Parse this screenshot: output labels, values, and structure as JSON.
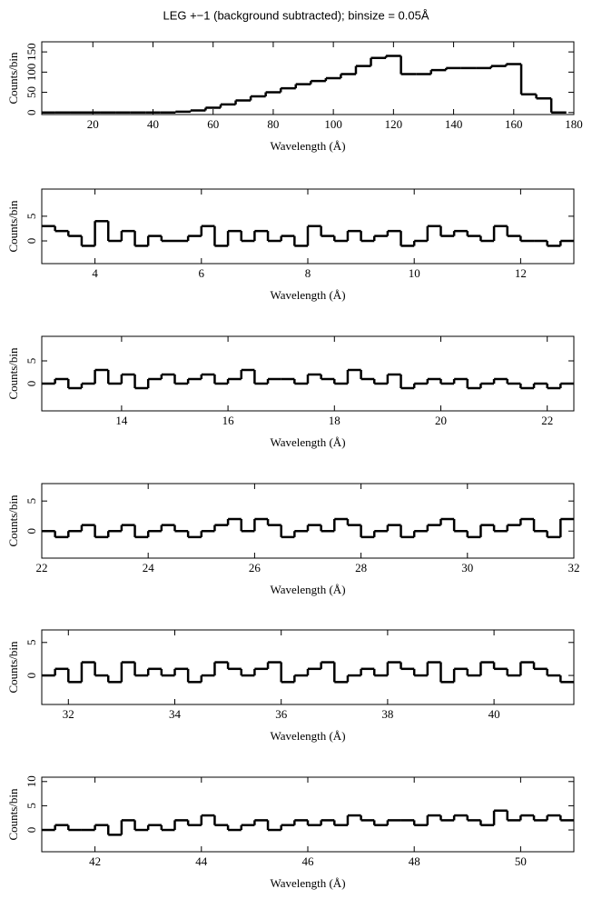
{
  "chart_data": [
    {
      "type": "step",
      "title": "LEG +−1 (background subtracted); binsize = 0.05Å",
      "xlabel": "Wavelength (Å)",
      "ylabel": "Counts/bin",
      "color": "#000000",
      "x": [
        5,
        10,
        15,
        20,
        25,
        30,
        35,
        40,
        45,
        50,
        55,
        60,
        65,
        70,
        75,
        80,
        85,
        90,
        95,
        100,
        105,
        110,
        115,
        120,
        125,
        130,
        135,
        140,
        145,
        150,
        155,
        160,
        165,
        170,
        175
      ],
      "values": [
        0,
        0,
        0,
        0,
        0,
        0,
        0,
        0,
        0,
        2,
        5,
        12,
        20,
        30,
        40,
        50,
        60,
        70,
        78,
        85,
        95,
        115,
        135,
        140,
        95,
        95,
        105,
        110,
        110,
        110,
        115,
        120,
        45,
        35,
        0
      ],
      "xlim": [
        3,
        180
      ],
      "xticks": [
        20,
        40,
        60,
        80,
        100,
        120,
        140,
        160,
        180
      ],
      "ylim": [
        -5,
        175
      ],
      "yticks": [
        0,
        50,
        100,
        150
      ]
    },
    {
      "type": "step",
      "xlabel": "Wavelength (Å)",
      "ylabel": "Counts/bin",
      "color": "#000000",
      "x": [
        3.125,
        3.375,
        3.625,
        3.875,
        4.125,
        4.375,
        4.625,
        4.875,
        5.125,
        5.375,
        5.625,
        5.875,
        6.125,
        6.375,
        6.625,
        6.875,
        7.125,
        7.375,
        7.625,
        7.875,
        8.125,
        8.375,
        8.625,
        8.875,
        9.125,
        9.375,
        9.625,
        9.875,
        10.125,
        10.375,
        10.625,
        10.875,
        11.125,
        11.375,
        11.625,
        11.875,
        12.125,
        12.375,
        12.625,
        12.875
      ],
      "values": [
        3,
        2,
        1,
        -1,
        4,
        0,
        2,
        -1,
        1,
        0,
        0,
        1,
        3,
        -1,
        2,
        0,
        2,
        0,
        1,
        -1,
        3,
        1,
        0,
        2,
        0,
        1,
        2,
        -1,
        0,
        3,
        1,
        2,
        1,
        0,
        3,
        1,
        0,
        0,
        -1,
        0
      ],
      "xlim": [
        3,
        13
      ],
      "xticks": [
        4,
        6,
        8,
        10,
        12
      ],
      "ylim": [
        -4.6,
        10.5
      ],
      "yticks": [
        0,
        5
      ]
    },
    {
      "type": "step",
      "xlabel": "Wavelength (Å)",
      "ylabel": "Counts/bin",
      "color": "#000000",
      "x": [
        12.625,
        12.875,
        13.125,
        13.375,
        13.625,
        13.875,
        14.125,
        14.375,
        14.625,
        14.875,
        15.125,
        15.375,
        15.625,
        15.875,
        16.125,
        16.375,
        16.625,
        16.875,
        17.125,
        17.375,
        17.625,
        17.875,
        18.125,
        18.375,
        18.625,
        18.875,
        19.125,
        19.375,
        19.625,
        19.875,
        20.125,
        20.375,
        20.625,
        20.875,
        21.125,
        21.375,
        21.625,
        21.875,
        22.125,
        22.375
      ],
      "values": [
        0,
        1,
        -1,
        0,
        3,
        0,
        2,
        -1,
        1,
        2,
        0,
        1,
        2,
        0,
        1,
        3,
        0,
        1,
        1,
        0,
        2,
        1,
        0,
        3,
        1,
        0,
        2,
        -1,
        0,
        1,
        0,
        1,
        -1,
        0,
        1,
        0,
        -1,
        0,
        -1,
        0
      ],
      "xlim": [
        12.5,
        22.5
      ],
      "xticks": [
        14,
        16,
        18,
        20,
        22
      ],
      "ylim": [
        -6,
        10.4
      ],
      "yticks": [
        0,
        5
      ]
    },
    {
      "type": "step",
      "xlabel": "Wavelength (Å)",
      "ylabel": "Counts/bin",
      "color": "#000000",
      "x": [
        22.125,
        22.375,
        22.625,
        22.875,
        23.125,
        23.375,
        23.625,
        23.875,
        24.125,
        24.375,
        24.625,
        24.875,
        25.125,
        25.375,
        25.625,
        25.875,
        26.125,
        26.375,
        26.625,
        26.875,
        27.125,
        27.375,
        27.625,
        27.875,
        28.125,
        28.375,
        28.625,
        28.875,
        29.125,
        29.375,
        29.625,
        29.875,
        30.125,
        30.375,
        30.625,
        30.875,
        31.125,
        31.375,
        31.625,
        31.875
      ],
      "values": [
        0,
        -1,
        0,
        1,
        -1,
        0,
        1,
        -1,
        0,
        1,
        0,
        -1,
        0,
        1,
        2,
        0,
        2,
        1,
        -1,
        0,
        1,
        0,
        2,
        1,
        -1,
        0,
        1,
        -1,
        0,
        1,
        2,
        0,
        -1,
        1,
        0,
        1,
        2,
        0,
        -1,
        2
      ],
      "xlim": [
        22,
        32
      ],
      "xticks": [
        22,
        24,
        26,
        28,
        30,
        32
      ],
      "ylim": [
        -4.5,
        7.9
      ],
      "yticks": [
        0,
        5
      ]
    },
    {
      "type": "step",
      "xlabel": "Wavelength (Å)",
      "ylabel": "Counts/bin",
      "color": "#000000",
      "x": [
        31.625,
        31.875,
        32.125,
        32.375,
        32.625,
        32.875,
        33.125,
        33.375,
        33.625,
        33.875,
        34.125,
        34.375,
        34.625,
        34.875,
        35.125,
        35.375,
        35.625,
        35.875,
        36.125,
        36.375,
        36.625,
        36.875,
        37.125,
        37.375,
        37.625,
        37.875,
        38.125,
        38.375,
        38.625,
        38.875,
        39.125,
        39.375,
        39.625,
        39.875,
        40.125,
        40.375,
        40.625,
        40.875,
        41.125,
        41.375
      ],
      "values": [
        0,
        1,
        -1,
        2,
        0,
        -1,
        2,
        0,
        1,
        0,
        1,
        -1,
        0,
        2,
        1,
        0,
        1,
        2,
        -1,
        0,
        1,
        2,
        -1,
        0,
        1,
        0,
        2,
        1,
        0,
        2,
        -1,
        1,
        0,
        2,
        1,
        0,
        2,
        1,
        0,
        -1
      ],
      "xlim": [
        31.5,
        41.5
      ],
      "xticks": [
        32,
        34,
        36,
        38,
        40
      ],
      "ylim": [
        -4.4,
        6.9
      ],
      "yticks": [
        0,
        5
      ]
    },
    {
      "type": "step",
      "xlabel": "Wavelength (Å)",
      "ylabel": "Counts/bin",
      "color": "#000000",
      "x": [
        41.125,
        41.375,
        41.625,
        41.875,
        42.125,
        42.375,
        42.625,
        42.875,
        43.125,
        43.375,
        43.625,
        43.875,
        44.125,
        44.375,
        44.625,
        44.875,
        45.125,
        45.375,
        45.625,
        45.875,
        46.125,
        46.375,
        46.625,
        46.875,
        47.125,
        47.375,
        47.625,
        47.875,
        48.125,
        48.375,
        48.625,
        48.875,
        49.125,
        49.375,
        49.625,
        49.875,
        50.125,
        50.375,
        50.625,
        50.875
      ],
      "values": [
        0,
        1,
        0,
        0,
        1,
        -1,
        2,
        0,
        1,
        0,
        2,
        1,
        3,
        1,
        0,
        1,
        2,
        0,
        1,
        2,
        1,
        2,
        1,
        3,
        2,
        1,
        2,
        2,
        1,
        3,
        2,
        3,
        2,
        1,
        4,
        2,
        3,
        2,
        3,
        2
      ],
      "xlim": [
        41,
        51
      ],
      "xticks": [
        42,
        44,
        46,
        48,
        50
      ],
      "ylim": [
        -4.5,
        10.9
      ],
      "yticks": [
        0,
        5,
        10
      ]
    }
  ]
}
